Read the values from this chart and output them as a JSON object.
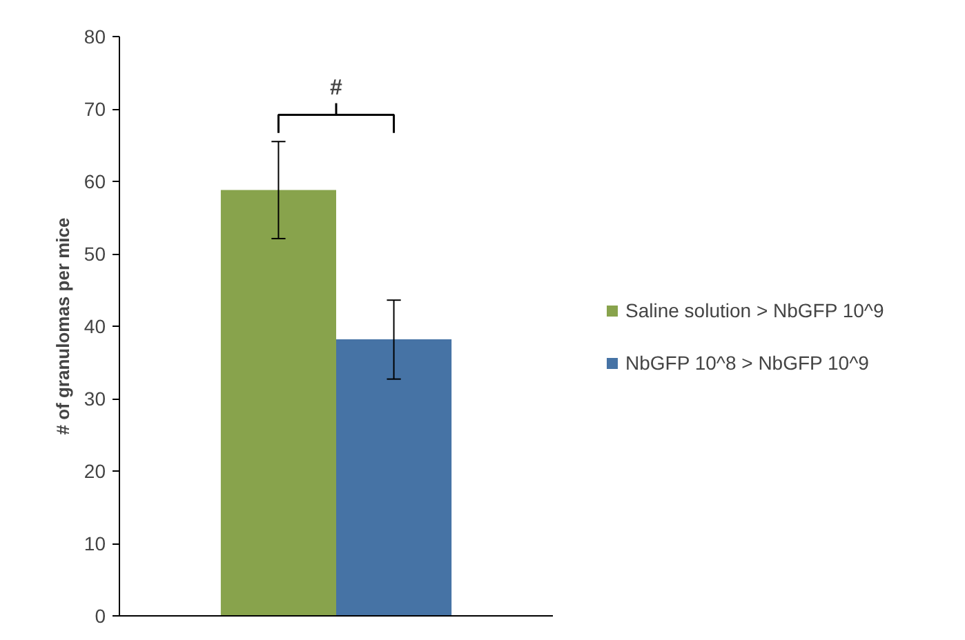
{
  "chart_data": {
    "type": "bar",
    "ylabel": "# of granulomas per mice",
    "categories": [
      null
    ],
    "series": [
      {
        "name": "Saline solution > NbGFP 10^9",
        "color": "#88a34c",
        "values": [
          58.8
        ],
        "errors": [
          [
            52.1,
            65.5
          ]
        ]
      },
      {
        "name": "NbGFP 10^8 > NbGFP 10^9",
        "color": "#4673a5",
        "values": [
          38.2
        ],
        "errors": [
          [
            32.7,
            43.6
          ]
        ]
      }
    ],
    "ylim": [
      0,
      80
    ],
    "yticks": [
      0,
      10,
      20,
      30,
      40,
      50,
      60,
      70,
      80
    ],
    "legend": "right",
    "annotations": [
      "#"
    ]
  }
}
